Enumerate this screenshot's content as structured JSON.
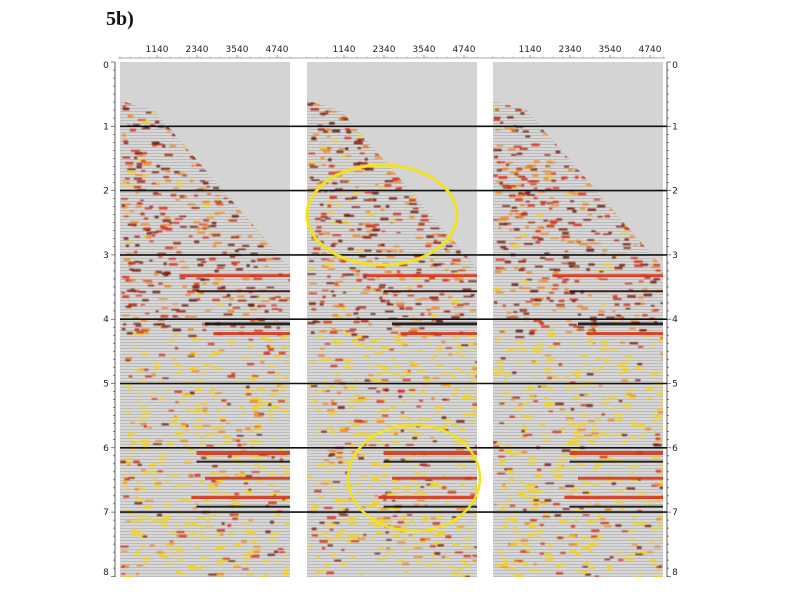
{
  "figure_label": "5b)",
  "x_tick_labels": [
    "1140",
    "2340",
    "3540",
    "4740"
  ],
  "y_tick_labels": [
    "0",
    "1",
    "2",
    "3",
    "4",
    "5",
    "6",
    "7",
    "8"
  ],
  "panels": [
    {
      "name": "left",
      "ellipses": []
    },
    {
      "name": "middle",
      "ellipses": [
        "upper",
        "lower"
      ]
    },
    {
      "name": "right",
      "ellipses": []
    }
  ],
  "colors": {
    "background": "#d4d4d4",
    "dark_red": "#7a1f0e",
    "red": "#d8341a",
    "orange": "#f08a24",
    "yellow": "#f5d21a",
    "annotation": "#f2e21c"
  }
}
